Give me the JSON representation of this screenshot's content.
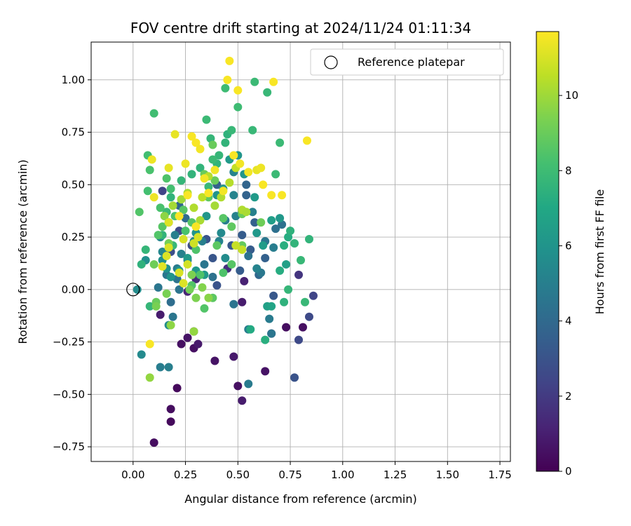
{
  "chart_data": {
    "type": "scatter",
    "title": "FOV centre drift starting at 2024/11/24 01:11:34",
    "xlabel": "Angular distance from reference (arcmin)",
    "ylabel": "Rotation from reference (arcmin)",
    "xlim": [
      -0.2,
      1.8
    ],
    "ylim": [
      -0.82,
      1.18
    ],
    "xticks": [
      0.0,
      0.25,
      0.5,
      0.75,
      1.0,
      1.25,
      1.5,
      1.75
    ],
    "xtick_labels": [
      "0.00",
      "0.25",
      "0.50",
      "0.75",
      "1.00",
      "1.25",
      "1.50",
      "1.75"
    ],
    "yticks": [
      -0.75,
      -0.5,
      -0.25,
      0.0,
      0.25,
      0.5,
      0.75,
      1.0
    ],
    "ytick_labels": [
      "−0.75",
      "−0.50",
      "−0.25",
      "0.00",
      "0.25",
      "0.50",
      "0.75",
      "1.00"
    ],
    "grid": true,
    "legend": {
      "position": "top-right",
      "entries": [
        "Reference platepar"
      ]
    },
    "reference_point": {
      "x": 0.0,
      "y": 0.0
    },
    "colorbar": {
      "label": "Hours from first FF file",
      "colormap": "viridis",
      "range": [
        0,
        11.7
      ],
      "ticks": [
        0,
        2,
        4,
        6,
        8,
        10
      ],
      "tick_labels": [
        "0",
        "2",
        "4",
        "6",
        "8",
        "10"
      ]
    },
    "points": [
      [
        0.1,
        -0.73,
        0.4
      ],
      [
        0.18,
        -0.63,
        0.3
      ],
      [
        0.18,
        -0.57,
        0.4
      ],
      [
        0.21,
        -0.47,
        0.3
      ],
      [
        0.13,
        -0.12,
        0.9
      ],
      [
        0.23,
        -0.26,
        0.5
      ],
      [
        0.26,
        -0.23,
        0.6
      ],
      [
        0.29,
        -0.28,
        0.5
      ],
      [
        0.31,
        -0.26,
        0.8
      ],
      [
        0.29,
        -0.2,
        0.7
      ],
      [
        0.39,
        -0.34,
        0.6
      ],
      [
        0.48,
        -0.32,
        0.8
      ],
      [
        0.5,
        -0.46,
        0.5
      ],
      [
        0.52,
        -0.53,
        0.9
      ],
      [
        0.63,
        -0.39,
        0.6
      ],
      [
        0.73,
        -0.18,
        0.4
      ],
      [
        0.81,
        -0.18,
        0.5
      ],
      [
        0.66,
        -0.21,
        0.7
      ],
      [
        0.52,
        -0.06,
        0.9
      ],
      [
        0.53,
        0.04,
        1.1
      ],
      [
        0.26,
        -0.01,
        1.2
      ],
      [
        0.3,
        0.05,
        1.5
      ],
      [
        0.45,
        0.1,
        1.6
      ],
      [
        0.79,
        -0.24,
        2.6
      ],
      [
        0.84,
        -0.13,
        2.6
      ],
      [
        0.86,
        -0.03,
        2.4
      ],
      [
        0.79,
        0.07,
        1.8
      ],
      [
        0.77,
        -0.42,
        3.0
      ],
      [
        0.67,
        -0.03,
        3.2
      ],
      [
        0.4,
        0.02,
        3.0
      ],
      [
        0.14,
        0.47,
        2.4
      ],
      [
        0.17,
        0.32,
        2.4
      ],
      [
        0.18,
        0.18,
        2.8
      ],
      [
        0.22,
        0.28,
        2.6
      ],
      [
        0.28,
        0.21,
        2.7
      ],
      [
        0.35,
        0.24,
        3.0
      ],
      [
        0.52,
        0.26,
        3.4
      ],
      [
        0.51,
        0.09,
        3.4
      ],
      [
        0.47,
        0.21,
        3.2
      ],
      [
        0.38,
        0.15,
        3.1
      ],
      [
        0.56,
        0.19,
        3.4
      ],
      [
        0.63,
        0.15,
        3.6
      ],
      [
        0.58,
        0.32,
        3.6
      ],
      [
        0.4,
        0.5,
        3.6
      ],
      [
        0.54,
        0.5,
        3.8
      ],
      [
        0.54,
        0.45,
        3.7
      ],
      [
        0.22,
        0.4,
        3.9
      ],
      [
        0.25,
        0.34,
        4.1
      ],
      [
        0.6,
        0.07,
        3.9
      ],
      [
        0.68,
        0.29,
        4.3
      ],
      [
        0.71,
        0.31,
        4.4
      ],
      [
        0.55,
        0.16,
        4.4
      ],
      [
        0.13,
        -0.37,
        4.9
      ],
      [
        0.17,
        -0.37,
        5.0
      ],
      [
        0.19,
        -0.13,
        4.6
      ],
      [
        0.18,
        -0.06,
        4.2
      ],
      [
        0.22,
        0.0,
        4.5
      ],
      [
        0.12,
        0.01,
        4.6
      ],
      [
        0.21,
        0.05,
        4.5
      ],
      [
        0.16,
        0.07,
        4.6
      ],
      [
        0.21,
        0.1,
        4.8
      ],
      [
        0.26,
        0.14,
        4.8
      ],
      [
        0.34,
        0.12,
        4.6
      ],
      [
        0.38,
        0.06,
        4.4
      ],
      [
        0.48,
        -0.07,
        4.5
      ],
      [
        0.55,
        -0.45,
        4.8
      ],
      [
        0.55,
        -0.19,
        4.9
      ],
      [
        0.65,
        -0.14,
        4.8
      ],
      [
        0.66,
        -0.21,
        4.6
      ],
      [
        0.61,
        0.08,
        4.7
      ],
      [
        0.63,
        0.23,
        4.6
      ],
      [
        0.67,
        0.2,
        4.9
      ],
      [
        0.59,
        0.1,
        5.2
      ],
      [
        0.33,
        0.23,
        5.0
      ],
      [
        0.29,
        0.23,
        5.2
      ],
      [
        0.2,
        0.26,
        5.0
      ],
      [
        0.23,
        0.17,
        5.1
      ],
      [
        0.13,
        0.25,
        5.3
      ],
      [
        0.14,
        0.18,
        5.4
      ],
      [
        0.41,
        0.23,
        5.2
      ],
      [
        0.44,
        0.33,
        5.0
      ],
      [
        0.49,
        0.35,
        5.1
      ],
      [
        0.52,
        0.37,
        5.4
      ],
      [
        0.57,
        0.37,
        5.1
      ],
      [
        0.48,
        0.45,
        5.2
      ],
      [
        0.48,
        0.56,
        5.2
      ],
      [
        0.42,
        0.27,
        5.5
      ],
      [
        0.44,
        0.15,
        5.6
      ],
      [
        0.04,
        -0.31,
        5.5
      ],
      [
        0.17,
        -0.17,
        5.6
      ],
      [
        0.02,
        0.0,
        5.6
      ],
      [
        0.06,
        0.14,
        5.8
      ],
      [
        0.14,
        0.14,
        5.8
      ],
      [
        0.16,
        0.1,
        5.9
      ],
      [
        0.18,
        0.06,
        6.0
      ],
      [
        0.22,
        0.09,
        6.2
      ],
      [
        0.26,
        0.15,
        6.3
      ],
      [
        0.3,
        0.09,
        6.2
      ],
      [
        0.34,
        0.07,
        6.3
      ],
      [
        0.3,
        0.27,
        6.0
      ],
      [
        0.35,
        0.35,
        6.1
      ],
      [
        0.4,
        0.45,
        6.0
      ],
      [
        0.43,
        0.48,
        6.2
      ],
      [
        0.46,
        0.62,
        6.3
      ],
      [
        0.5,
        0.64,
        6.0
      ],
      [
        0.53,
        0.55,
        6.1
      ],
      [
        0.58,
        0.44,
        6.3
      ],
      [
        0.59,
        0.27,
        6.2
      ],
      [
        0.62,
        0.21,
        6.4
      ],
      [
        0.66,
        0.33,
        6.5
      ],
      [
        0.7,
        0.34,
        6.2
      ],
      [
        0.73,
        0.12,
        6.6
      ],
      [
        0.64,
        -0.08,
        6.6
      ],
      [
        0.66,
        -0.08,
        6.8
      ],
      [
        0.56,
        -0.19,
        7.1
      ],
      [
        0.63,
        -0.24,
        7.3
      ],
      [
        0.7,
        0.09,
        7.2
      ],
      [
        0.72,
        0.21,
        7.3
      ],
      [
        0.74,
        0.25,
        7.2
      ],
      [
        0.75,
        0.28,
        7.5
      ],
      [
        0.77,
        0.22,
        7.6
      ],
      [
        0.84,
        0.24,
        7.6
      ],
      [
        0.8,
        0.14,
        7.8
      ],
      [
        0.82,
        -0.06,
        7.8
      ],
      [
        0.72,
        -0.06,
        7.5
      ],
      [
        0.74,
        0.0,
        7.7
      ],
      [
        0.08,
        -0.08,
        7.7
      ],
      [
        0.04,
        0.12,
        7.5
      ],
      [
        0.06,
        0.19,
        7.7
      ],
      [
        0.14,
        0.26,
        7.6
      ],
      [
        0.19,
        0.21,
        7.8
      ],
      [
        0.16,
        0.37,
        7.9
      ],
      [
        0.18,
        0.44,
        7.6
      ],
      [
        0.23,
        0.52,
        7.7
      ],
      [
        0.28,
        0.55,
        7.6
      ],
      [
        0.32,
        0.58,
        7.6
      ],
      [
        0.36,
        0.49,
        7.8
      ],
      [
        0.4,
        0.6,
        7.6
      ],
      [
        0.41,
        0.64,
        7.7
      ],
      [
        0.44,
        0.7,
        7.6
      ],
      [
        0.45,
        0.74,
        7.5
      ],
      [
        0.47,
        0.76,
        7.8
      ],
      [
        0.37,
        0.72,
        7.7
      ],
      [
        0.38,
        0.62,
        7.9
      ],
      [
        0.35,
        0.81,
        7.9
      ],
      [
        0.44,
        0.96,
        8.0
      ],
      [
        0.5,
        0.87,
        8.0
      ],
      [
        0.58,
        0.99,
        7.9
      ],
      [
        0.64,
        0.94,
        7.8
      ],
      [
        0.57,
        0.76,
        7.8
      ],
      [
        0.68,
        0.55,
        7.9
      ],
      [
        0.7,
        0.7,
        7.9
      ],
      [
        0.1,
        0.84,
        8.1
      ],
      [
        0.07,
        0.64,
        8.1
      ],
      [
        0.08,
        0.57,
        8.3
      ],
      [
        0.07,
        0.47,
        8.2
      ],
      [
        0.16,
        0.53,
        8.4
      ],
      [
        0.18,
        0.48,
        8.2
      ],
      [
        0.13,
        0.39,
        8.3
      ],
      [
        0.03,
        0.37,
        8.5
      ],
      [
        0.12,
        0.26,
        8.5
      ],
      [
        0.14,
        0.3,
        8.6
      ],
      [
        0.2,
        0.35,
        8.4
      ],
      [
        0.24,
        0.38,
        8.6
      ],
      [
        0.25,
        0.28,
        8.3
      ],
      [
        0.28,
        0.32,
        8.6
      ],
      [
        0.3,
        0.19,
        8.4
      ],
      [
        0.32,
        0.07,
        8.4
      ],
      [
        0.28,
        0.02,
        8.5
      ],
      [
        0.34,
        -0.09,
        8.5
      ],
      [
        0.38,
        -0.04,
        8.7
      ],
      [
        0.43,
        0.08,
        8.4
      ],
      [
        0.47,
        0.12,
        8.6
      ],
      [
        0.4,
        0.21,
        8.7
      ],
      [
        0.43,
        0.34,
        8.6
      ],
      [
        0.47,
        0.3,
        8.8
      ],
      [
        0.52,
        0.21,
        8.9
      ],
      [
        0.36,
        0.44,
        8.8
      ],
      [
        0.39,
        0.52,
        9.0
      ],
      [
        0.34,
        0.55,
        9.0
      ],
      [
        0.38,
        0.69,
        9.0
      ],
      [
        0.52,
        0.36,
        9.0
      ],
      [
        0.61,
        0.32,
        9.1
      ],
      [
        0.17,
        0.22,
        9.2
      ],
      [
        0.1,
        0.12,
        9.1
      ],
      [
        0.11,
        -0.06,
        9.0
      ],
      [
        0.11,
        -0.08,
        9.3
      ],
      [
        0.16,
        -0.02,
        9.3
      ],
      [
        0.27,
        0.0,
        9.2
      ],
      [
        0.28,
        0.07,
        9.4
      ],
      [
        0.3,
        -0.04,
        9.4
      ],
      [
        0.33,
        0.01,
        9.5
      ],
      [
        0.36,
        -0.04,
        9.6
      ],
      [
        0.18,
        -0.17,
        9.7
      ],
      [
        0.29,
        -0.2,
        9.8
      ],
      [
        0.08,
        -0.42,
        9.8
      ],
      [
        0.15,
        0.35,
        9.7
      ],
      [
        0.19,
        0.4,
        10.1
      ],
      [
        0.23,
        0.43,
        10.0
      ],
      [
        0.26,
        0.46,
        10.2
      ],
      [
        0.29,
        0.39,
        10.3
      ],
      [
        0.32,
        0.33,
        10.2
      ],
      [
        0.33,
        0.44,
        10.5
      ],
      [
        0.36,
        0.54,
        10.4
      ],
      [
        0.39,
        0.4,
        10.1
      ],
      [
        0.42,
        0.44,
        10.3
      ],
      [
        0.46,
        0.51,
        10.4
      ],
      [
        0.49,
        0.58,
        10.6
      ],
      [
        0.52,
        0.38,
        10.3
      ],
      [
        0.54,
        0.37,
        10.2
      ],
      [
        0.49,
        0.21,
        10.7
      ],
      [
        0.52,
        0.19,
        10.7
      ],
      [
        0.26,
        0.12,
        10.9
      ],
      [
        0.29,
        0.22,
        10.8
      ],
      [
        0.31,
        0.25,
        11.0
      ],
      [
        0.24,
        0.24,
        11.0
      ],
      [
        0.17,
        0.2,
        11.0
      ],
      [
        0.16,
        0.16,
        11.1
      ],
      [
        0.14,
        0.11,
        11.2
      ],
      [
        0.17,
        0.32,
        11.1
      ],
      [
        0.22,
        0.08,
        11.0
      ],
      [
        0.24,
        0.03,
        11.1
      ],
      [
        0.2,
        0.74,
        11.3
      ],
      [
        0.09,
        0.62,
        11.4
      ],
      [
        0.1,
        0.44,
        11.4
      ],
      [
        0.17,
        0.58,
        11.3
      ],
      [
        0.25,
        0.6,
        11.4
      ],
      [
        0.28,
        0.73,
        11.6
      ],
      [
        0.3,
        0.7,
        11.6
      ],
      [
        0.32,
        0.67,
        11.5
      ],
      [
        0.34,
        0.53,
        11.5
      ],
      [
        0.36,
        0.46,
        11.6
      ],
      [
        0.39,
        0.57,
        11.5
      ],
      [
        0.43,
        0.47,
        11.5
      ],
      [
        0.45,
        1.0,
        11.6
      ],
      [
        0.46,
        1.09,
        11.6
      ],
      [
        0.5,
        0.95,
        11.6
      ],
      [
        0.48,
        0.64,
        11.6
      ],
      [
        0.51,
        0.6,
        11.5
      ],
      [
        0.55,
        0.56,
        11.5
      ],
      [
        0.59,
        0.57,
        11.3
      ],
      [
        0.61,
        0.58,
        11.4
      ],
      [
        0.62,
        0.5,
        11.6
      ],
      [
        0.66,
        0.45,
        11.6
      ],
      [
        0.67,
        0.99,
        11.6
      ],
      [
        0.71,
        0.45,
        11.6
      ],
      [
        0.83,
        0.71,
        11.6
      ],
      [
        0.08,
        -0.26,
        11.6
      ],
      [
        0.3,
        0.3,
        11.6
      ],
      [
        0.26,
        0.45,
        11.6
      ],
      [
        0.22,
        0.35,
        11.6
      ]
    ]
  }
}
